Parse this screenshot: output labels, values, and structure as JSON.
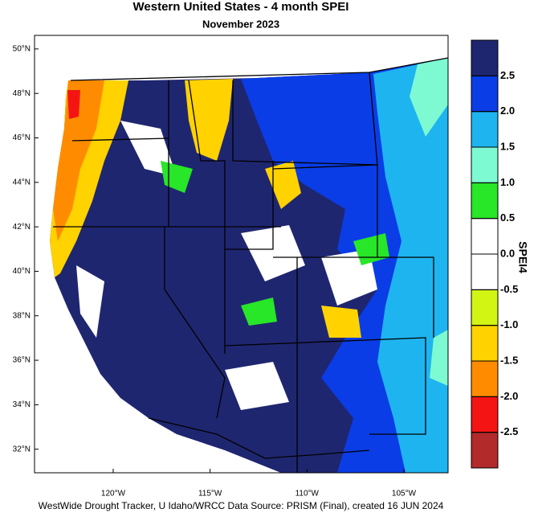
{
  "chart_data": {
    "type": "map",
    "title": "Western United States - 4 month SPEI",
    "subtitle": "November 2023",
    "ylim": [
      30.94,
      50.61
    ],
    "yticks": [
      {
        "value": 50,
        "label": "50°N"
      },
      {
        "value": 48,
        "label": "48°N"
      },
      {
        "value": 46,
        "label": "46°N"
      },
      {
        "value": 44,
        "label": "44°N"
      },
      {
        "value": 42,
        "label": "42°N"
      },
      {
        "value": 40,
        "label": "40°N"
      },
      {
        "value": 38,
        "label": "38°N"
      },
      {
        "value": 36,
        "label": "36°N"
      },
      {
        "value": 34,
        "label": "34°N"
      },
      {
        "value": 32,
        "label": "32°N"
      }
    ],
    "xlim": [
      -124.06,
      -102.72
    ],
    "xticks": [
      {
        "value": -120,
        "label": "120°W"
      },
      {
        "value": -115,
        "label": "115°W"
      },
      {
        "value": -110,
        "label": "110°W"
      },
      {
        "value": -105,
        "label": "105°W"
      }
    ],
    "colorbar": {
      "title": "SPEI4",
      "lim": [
        -3,
        3
      ],
      "colors": [
        "#b22a2a",
        "#f51414",
        "#ff8c00",
        "#ffd200",
        "#d2f514",
        "#ffffff",
        "#ffffff",
        "#28e628",
        "#7dfad2",
        "#1eb4f0",
        "#0a3de6",
        "#1f2670"
      ],
      "ticks": [
        2.5,
        {
          "value": 2,
          "label": "2.0"
        },
        1.5,
        {
          "value": 1,
          "label": "1.0"
        },
        0.5,
        {
          "value": 0,
          "label": "0.0"
        },
        -0.5,
        {
          "value": -1,
          "label": "-1.0"
        },
        -1.5,
        {
          "value": -2,
          "label": "-2.0"
        },
        -2.5
      ]
    },
    "credit": "WestWide Drought Tracker, U Idaho/WRCC Data Source: PRISM (Final), created 16 JUN 2024"
  }
}
